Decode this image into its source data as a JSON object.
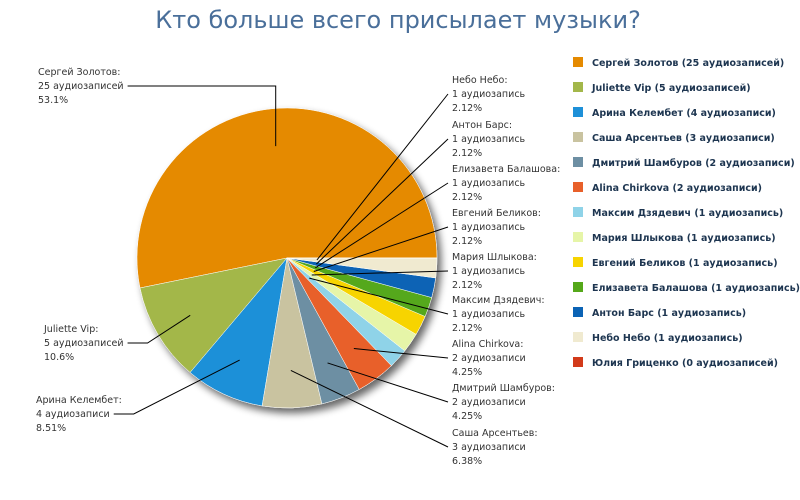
{
  "chart_data": {
    "type": "pie",
    "title": "Кто больше всего присылает музыки?",
    "categories": [
      "Сергей Золотов (25 аудиозаписей)",
      "Juliette Vip (5 аудиозаписей)",
      "Арина Келембет (4 аудиозаписи)",
      "Саша Арсентьев (3 аудиозаписи)",
      "Дмитрий Шамбуров (2 аудиозаписи)",
      "Alina Chirkova (2 аудиозаписи)",
      "Максим Дзядевич (1 аудиозапись)",
      "Мария Шлыкова (1 аудиозапись)",
      "Евгений Беликов (1 аудиозапись)",
      "Елизавета Балашова (1 аудиозапись)",
      "Антон Барс (1 аудиозапись)",
      "Небо Небо (1 аудиозапись)",
      "Юлия Гриценко (0 аудиозаписей)"
    ],
    "values": [
      53.1,
      10.6,
      8.51,
      6.38,
      4.25,
      4.25,
      2.12,
      2.12,
      2.12,
      2.12,
      2.12,
      2.12,
      0
    ],
    "value_labels": [
      "53.1%",
      "10.6%",
      "8.51%",
      "6.38%",
      "4.25%",
      "4.25%",
      "2.12%",
      "2.12%",
      "2.12%",
      "2.12%",
      "2.12%",
      "2.12%",
      null
    ],
    "callouts": [
      {
        "name": "Сергей Золотов:",
        "count": "25 аудиозаписей"
      },
      {
        "name": "Juliette Vip:",
        "count": "5 аудиозаписей"
      },
      {
        "name": "Арина Келембет:",
        "count": "4 аудиозаписи"
      },
      {
        "name": "Саша Арсентьев:",
        "count": "3 аудиозаписи"
      },
      {
        "name": "Дмитрий Шамбуров:",
        "count": "2 аудиозаписи"
      },
      {
        "name": "Alina Chirkova:",
        "count": "2 аудиозаписи"
      },
      {
        "name": "Максим Дзядевич:",
        "count": "1 аудиозапись"
      },
      {
        "name": "Мария Шлыкова:",
        "count": "1 аудиозапись"
      },
      {
        "name": "Евгений Беликов:",
        "count": "1 аудиозапись"
      },
      {
        "name": "Елизавета Балашова:",
        "count": "1 аудиозапись"
      },
      {
        "name": "Антон Барс:",
        "count": "1 аудиозапись"
      },
      {
        "name": "Небо Небо:",
        "count": "1 аудиозапись"
      },
      null
    ],
    "colors": [
      "#e58a00",
      "#a3b74a",
      "#1e90d8",
      "#c9c3a0",
      "#6d8fa3",
      "#e8602a",
      "#8fd3e8",
      "#e6f5a8",
      "#f7d400",
      "#55a81a",
      "#0b63b5",
      "#f0ead0",
      "#d23a1a"
    ],
    "legend": "right"
  }
}
